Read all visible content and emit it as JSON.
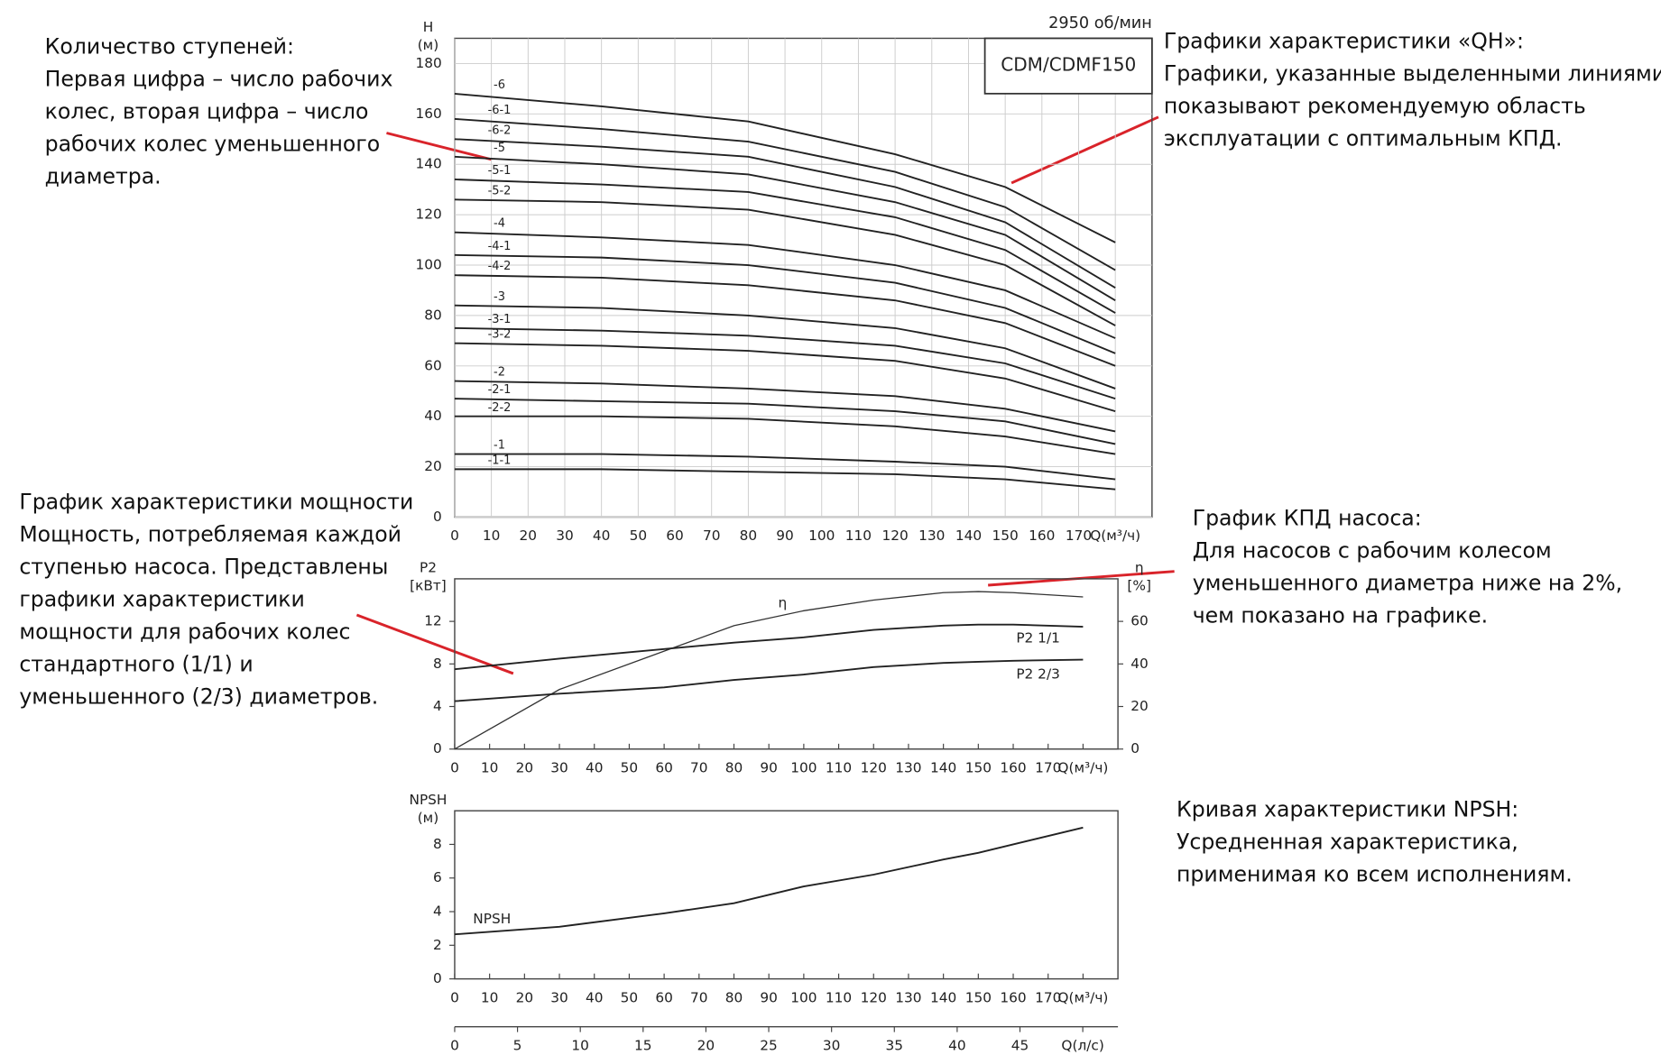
{
  "chart_data": [
    {
      "type": "line",
      "speed": "2950 об/мин",
      "model": "CDM/CDMF150",
      "ylabel": [
        "H",
        "(м)"
      ],
      "x": [
        0,
        40,
        80,
        120,
        150,
        180
      ],
      "xlim": [
        0,
        190
      ],
      "ylim": [
        0,
        190
      ],
      "xticks": [
        0,
        10,
        20,
        30,
        40,
        50,
        60,
        70,
        80,
        90,
        100,
        110,
        120,
        130,
        140,
        150,
        160,
        170,
        {
          "value": 180,
          "label": "Q(м³/ч)"
        }
      ],
      "yticks": [
        0,
        20,
        40,
        60,
        80,
        100,
        120,
        140,
        160,
        180
      ],
      "grid": true,
      "series": [
        {
          "name": "-6",
          "color": "#222222",
          "values": [
            168,
            163,
            157,
            144,
            131,
            109
          ]
        },
        {
          "name": "-6-1",
          "color": "#222222",
          "values": [
            158,
            154,
            149,
            137,
            123,
            98
          ]
        },
        {
          "name": "-6-2",
          "color": "#222222",
          "values": [
            150,
            147,
            143,
            131,
            117,
            91
          ]
        },
        {
          "name": "-5",
          "color": "#222222",
          "values": [
            143,
            140,
            136,
            125,
            112,
            86
          ]
        },
        {
          "name": "-5-1",
          "color": "#222222",
          "values": [
            134,
            132,
            129,
            119,
            106,
            81
          ]
        },
        {
          "name": "-5-2",
          "color": "#222222",
          "values": [
            126,
            125,
            122,
            112,
            100,
            76
          ]
        },
        {
          "name": "-4",
          "color": "#222222",
          "values": [
            113,
            111,
            108,
            100,
            90,
            71
          ]
        },
        {
          "name": "-4-1",
          "color": "#222222",
          "values": [
            104,
            103,
            100,
            93,
            83,
            65
          ]
        },
        {
          "name": "-4-2",
          "color": "#222222",
          "values": [
            96,
            95,
            92,
            86,
            77,
            60
          ]
        },
        {
          "name": "-3",
          "color": "#222222",
          "values": [
            84,
            83,
            80,
            75,
            67,
            51
          ]
        },
        {
          "name": "-3-1",
          "color": "#222222",
          "values": [
            75,
            74,
            72,
            68,
            61,
            47
          ]
        },
        {
          "name": "-3-2",
          "color": "#222222",
          "values": [
            69,
            68,
            66,
            62,
            55,
            42
          ]
        },
        {
          "name": "-2",
          "color": "#222222",
          "values": [
            54,
            53,
            51,
            48,
            43,
            34
          ]
        },
        {
          "name": "-2-1",
          "color": "#222222",
          "values": [
            47,
            46,
            45,
            42,
            38,
            29
          ]
        },
        {
          "name": "-2-2",
          "color": "#222222",
          "values": [
            40,
            40,
            39,
            36,
            32,
            25
          ]
        },
        {
          "name": "-1",
          "color": "#222222",
          "values": [
            25,
            25,
            24,
            22,
            20,
            15
          ]
        },
        {
          "name": "-1-1",
          "color": "#222222",
          "values": [
            19,
            19,
            18,
            17,
            15,
            11
          ]
        }
      ]
    },
    {
      "type": "line",
      "ylabel": [
        "P2",
        "[кВт]"
      ],
      "y2label": [
        "η",
        "[%]"
      ],
      "x": [
        0,
        30,
        60,
        80,
        100,
        120,
        140,
        150,
        160,
        180
      ],
      "xlim": [
        0,
        190
      ],
      "ylim": [
        0,
        16
      ],
      "y2lim": [
        0,
        80
      ],
      "xticks": [
        0,
        10,
        20,
        30,
        40,
        50,
        60,
        70,
        80,
        90,
        100,
        110,
        120,
        130,
        140,
        150,
        160,
        170,
        {
          "value": 180,
          "label": "Q(м³/ч)"
        }
      ],
      "yticks": [
        0,
        4,
        8,
        12
      ],
      "y2ticks": [
        0,
        20,
        40,
        60
      ],
      "grid": false,
      "series": [
        {
          "name": "η",
          "color": "#333333",
          "axis": "y2",
          "values": [
            0,
            28,
            46,
            58,
            65,
            70,
            73.5,
            74,
            73.5,
            71.5
          ]
        },
        {
          "name": "P2 1/1",
          "color": "#222222",
          "values": [
            7.5,
            8.5,
            9.4,
            10,
            10.5,
            11.2,
            11.6,
            11.7,
            11.7,
            11.5
          ]
        },
        {
          "name": "P2 2/3",
          "color": "#222222",
          "values": [
            4.5,
            5.2,
            5.8,
            6.5,
            7.0,
            7.7,
            8.1,
            8.2,
            8.3,
            8.4
          ]
        }
      ]
    },
    {
      "type": "line",
      "ylabel": [
        "NPSH",
        "(м)"
      ],
      "x": [
        0,
        30,
        60,
        80,
        100,
        120,
        140,
        150,
        160,
        180
      ],
      "xlim": [
        0,
        190
      ],
      "ylim": [
        0,
        10
      ],
      "xticks": [
        0,
        10,
        20,
        30,
        40,
        50,
        60,
        70,
        80,
        90,
        100,
        110,
        120,
        130,
        140,
        150,
        160,
        170,
        {
          "value": 180,
          "label": "Q(м³/ч)"
        }
      ],
      "yticks": [
        0,
        2,
        4,
        6,
        8
      ],
      "grid": false,
      "x2lim": [
        0,
        52.8
      ],
      "x2ticks": [
        0,
        5,
        10,
        15,
        20,
        25,
        30,
        35,
        40,
        45,
        {
          "value": 50,
          "label": "Q(л/с)"
        }
      ],
      "series": [
        {
          "name": "NPSH",
          "color": "#222222",
          "values": [
            2.65,
            3.1,
            3.9,
            4.5,
            5.5,
            6.2,
            7.1,
            7.5,
            8,
            9
          ]
        }
      ]
    }
  ],
  "annotations": [
    {
      "lines": [
        "Количество ступеней:",
        "Первая цифра – число рабочих",
        "колес, вторая цифра – число",
        "рабочих колес уменьшенного",
        "диаметра."
      ]
    },
    {
      "lines": [
        "Графики характеристики «QH»:",
        "Графики, указанные выделенными линиями,",
        "показывают рекомендуемую область",
        "эксплуатации с оптимальным КПД."
      ]
    },
    {
      "lines": [
        "График характеристики мощности",
        "Мощность, потребляемая каждой",
        "ступенью насоса. Представлены",
        "графики характеристики",
        "мощности для рабочих колес",
        "стандартного (1/1) и",
        "уменьшенного (2/3) диаметров."
      ]
    },
    {
      "lines": [
        "График КПД насоса:",
        "Для насосов с рабочим колесом",
        "уменьшенного диаметра ниже на 2%,",
        "чем показано на графике."
      ]
    },
    {
      "lines": [
        "Кривая характеристики NPSH:",
        "Усредненная характеристика,",
        "применимая ко всем исполнениям."
      ]
    }
  ]
}
